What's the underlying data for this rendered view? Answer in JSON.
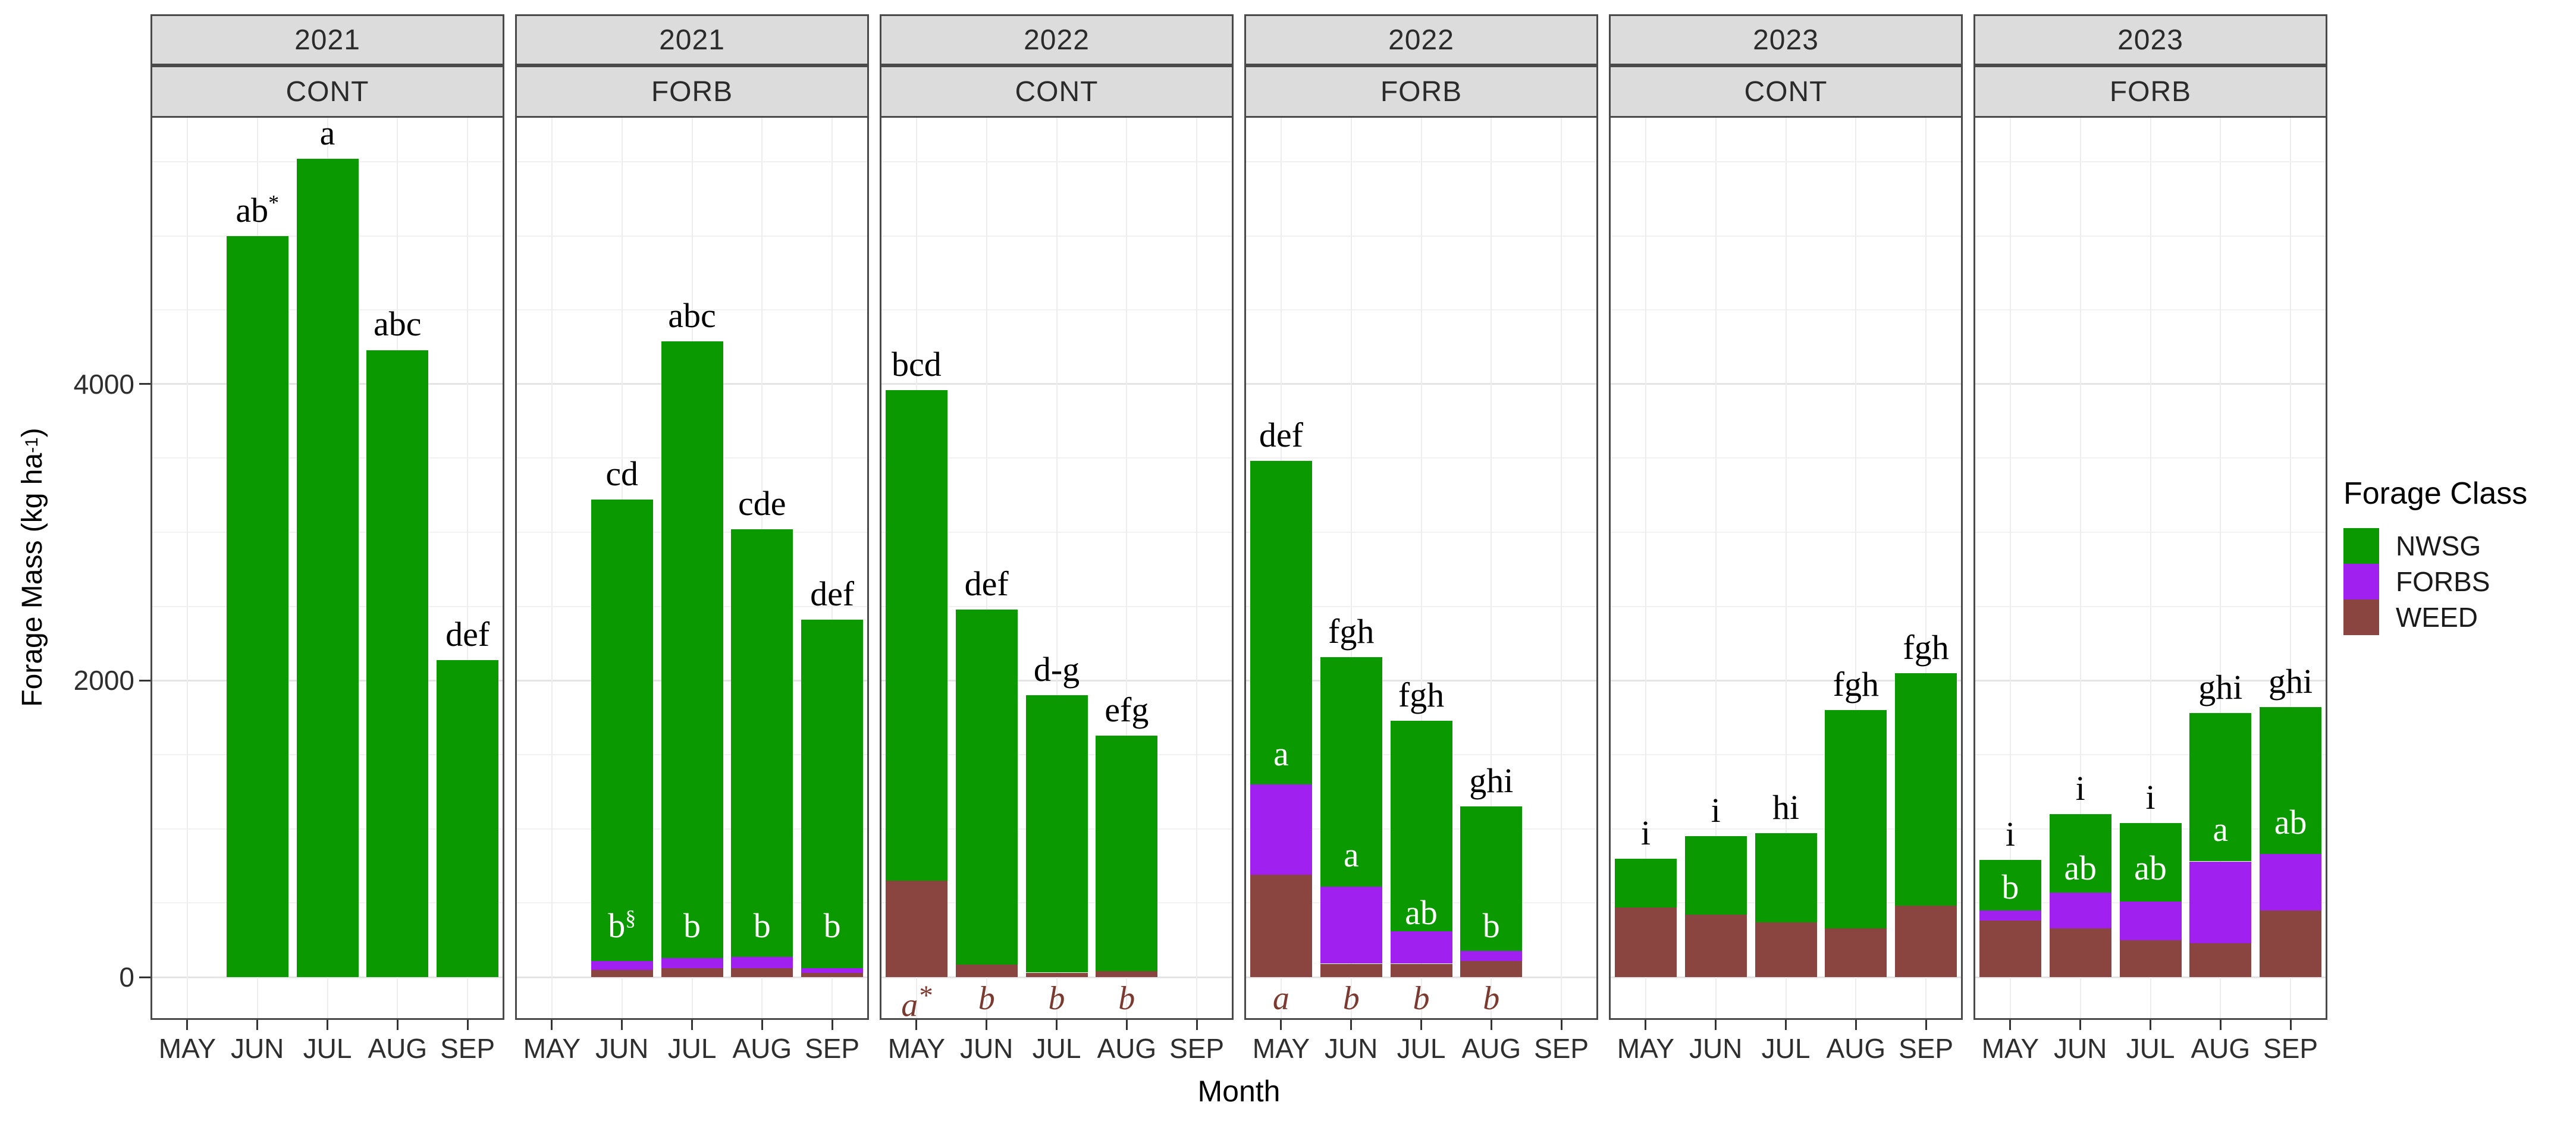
{
  "chart_data": {
    "type": "bar",
    "stacked": true,
    "xlabel": "Month",
    "ylabel": "Forage Mass (kg ha-1)",
    "ylabel_parts": {
      "pre": "Forage Mass (kg ha",
      "sup": "-1",
      "post": ")"
    },
    "y_ticks": [
      {
        "value": 0,
        "label": "0"
      },
      {
        "value": 2000,
        "label": "2000"
      },
      {
        "value": 4000,
        "label": "4000"
      }
    ],
    "ylim": [
      -280,
      5800
    ],
    "grid": {
      "minor_step": 500,
      "major_step": 2000
    },
    "months": [
      "MAY",
      "JUN",
      "JUL",
      "AUG",
      "SEP"
    ],
    "series_order": [
      "WEED",
      "FORBS",
      "NWSG"
    ],
    "legend": {
      "title": "Forage Class",
      "items": [
        {
          "label": "NWSG",
          "color": "#0B9900"
        },
        {
          "label": "FORBS",
          "color": "#A020F0"
        },
        {
          "label": "WEED",
          "color": "#8B4540"
        }
      ]
    },
    "panels": [
      {
        "year": "2021",
        "treatment": "CONT",
        "bars": [
          {
            "month": "JUN",
            "WEED": 0,
            "FORBS": 0,
            "NWSG": 5000,
            "total": 5000,
            "sig": "ab",
            "sig_sup": "*"
          },
          {
            "month": "JUL",
            "WEED": 0,
            "FORBS": 0,
            "NWSG": 5520,
            "total": 5520,
            "sig": "a"
          },
          {
            "month": "AUG",
            "WEED": 0,
            "FORBS": 0,
            "NWSG": 4230,
            "total": 4230,
            "sig": "abc"
          },
          {
            "month": "SEP",
            "WEED": 0,
            "FORBS": 0,
            "NWSG": 2140,
            "total": 2140,
            "sig": "def"
          }
        ]
      },
      {
        "year": "2021",
        "treatment": "FORB",
        "bars": [
          {
            "month": "JUN",
            "WEED": 50,
            "FORBS": 60,
            "NWSG": 3110,
            "total": 3220,
            "sig": "cd",
            "inbar": "b",
            "inbar_sup": "§",
            "inbar_y": 340
          },
          {
            "month": "JUL",
            "WEED": 60,
            "FORBS": 70,
            "NWSG": 4160,
            "total": 4290,
            "sig": "abc",
            "inbar": "b",
            "inbar_y": 340
          },
          {
            "month": "AUG",
            "WEED": 60,
            "FORBS": 75,
            "NWSG": 2885,
            "total": 3020,
            "sig": "cde",
            "inbar": "b",
            "inbar_y": 340
          },
          {
            "month": "SEP",
            "WEED": 30,
            "FORBS": 30,
            "NWSG": 2350,
            "total": 2410,
            "sig": "def",
            "inbar": "b",
            "inbar_y": 340
          }
        ]
      },
      {
        "year": "2022",
        "treatment": "CONT",
        "bars": [
          {
            "month": "MAY",
            "WEED": 650,
            "FORBS": 0,
            "NWSG": 3310,
            "total": 3960,
            "sig": "bcd",
            "below": "a",
            "below_sup": "*"
          },
          {
            "month": "JUN",
            "WEED": 85,
            "FORBS": 0,
            "NWSG": 2395,
            "total": 2480,
            "sig": "def",
            "below": "b"
          },
          {
            "month": "JUL",
            "WEED": 30,
            "FORBS": 0,
            "NWSG": 1870,
            "total": 1900,
            "sig": "d-g",
            "below": "b"
          },
          {
            "month": "AUG",
            "WEED": 40,
            "FORBS": 0,
            "NWSG": 1590,
            "total": 1630,
            "sig": "efg",
            "below": "b"
          }
        ]
      },
      {
        "year": "2022",
        "treatment": "FORB",
        "bars": [
          {
            "month": "MAY",
            "WEED": 690,
            "FORBS": 610,
            "NWSG": 2180,
            "total": 3480,
            "sig": "def",
            "inbar": "a",
            "inbar_y": 1500,
            "below": "a"
          },
          {
            "month": "JUN",
            "WEED": 90,
            "FORBS": 520,
            "NWSG": 1550,
            "total": 2160,
            "sig": "fgh",
            "inbar": "a",
            "inbar_y": 820,
            "below": "b"
          },
          {
            "month": "JUL",
            "WEED": 90,
            "FORBS": 220,
            "NWSG": 1420,
            "total": 1730,
            "sig": "fgh",
            "inbar": "ab",
            "inbar_y": 430,
            "below": "b"
          },
          {
            "month": "AUG",
            "WEED": 110,
            "FORBS": 65,
            "NWSG": 975,
            "total": 1150,
            "sig": "ghi",
            "inbar": "b",
            "inbar_y": 340,
            "below": "b"
          }
        ]
      },
      {
        "year": "2023",
        "treatment": "CONT",
        "bars": [
          {
            "month": "MAY",
            "WEED": 470,
            "FORBS": 0,
            "NWSG": 330,
            "total": 800,
            "sig": "i"
          },
          {
            "month": "JUN",
            "WEED": 420,
            "FORBS": 0,
            "NWSG": 530,
            "total": 950,
            "sig": "i"
          },
          {
            "month": "JUL",
            "WEED": 370,
            "FORBS": 0,
            "NWSG": 600,
            "total": 970,
            "sig": "hi"
          },
          {
            "month": "AUG",
            "WEED": 330,
            "FORBS": 0,
            "NWSG": 1470,
            "total": 1800,
            "sig": "fgh"
          },
          {
            "month": "SEP",
            "WEED": 480,
            "FORBS": 0,
            "NWSG": 1570,
            "total": 2050,
            "sig": "fgh"
          }
        ]
      },
      {
        "year": "2023",
        "treatment": "FORB",
        "bars": [
          {
            "month": "MAY",
            "WEED": 380,
            "FORBS": 70,
            "NWSG": 340,
            "total": 790,
            "sig": "i",
            "inbar": "b",
            "inbar_y": 600
          },
          {
            "month": "JUN",
            "WEED": 330,
            "FORBS": 240,
            "NWSG": 530,
            "total": 1100,
            "sig": "i",
            "inbar": "ab",
            "inbar_y": 730
          },
          {
            "month": "JUL",
            "WEED": 250,
            "FORBS": 260,
            "NWSG": 530,
            "total": 1040,
            "sig": "i",
            "inbar": "ab",
            "inbar_y": 730
          },
          {
            "month": "AUG",
            "WEED": 230,
            "FORBS": 550,
            "NWSG": 1000,
            "total": 1780,
            "sig": "ghi",
            "inbar": "a",
            "inbar_y": 990
          },
          {
            "month": "SEP",
            "WEED": 450,
            "FORBS": 380,
            "NWSG": 990,
            "total": 1820,
            "sig": "ghi",
            "inbar": "ab",
            "inbar_y": 1040
          }
        ]
      }
    ]
  }
}
